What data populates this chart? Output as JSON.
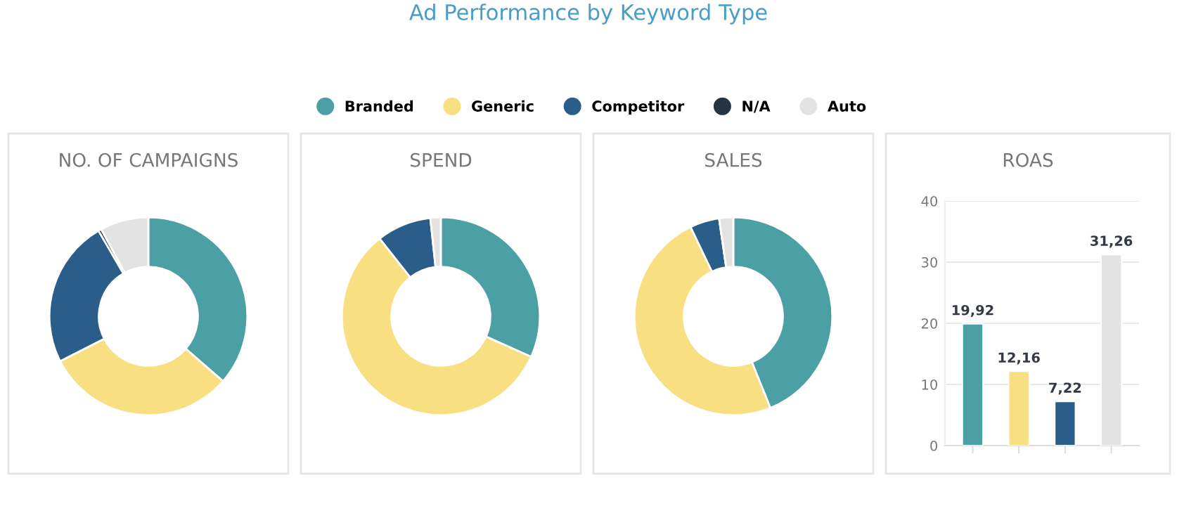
{
  "chart_data": [
    {
      "type": "donut",
      "title": "NO. OF CAMPAIGNS",
      "annotations": [
        "Ad Performance by Keyword Type"
      ],
      "legend": "top",
      "categories": [
        "Branded",
        "Generic",
        "Competitor",
        "N/A",
        "Auto"
      ],
      "values": [
        36.4,
        31.1,
        24.1,
        0.5,
        7.9
      ],
      "colors": [
        "#4ba0a6",
        "#f7df82",
        "#2b5d8a",
        "#263545",
        "#e3e3e3"
      ]
    },
    {
      "type": "donut",
      "title": "SPEND",
      "categories": [
        null,
        null,
        null,
        null,
        null
      ],
      "values": [
        31.7,
        57.6,
        8.9,
        null,
        1.7
      ],
      "colors": [
        "#4ba0a6",
        "#f7df82",
        "#2b5d8a",
        "#263545",
        "#e3e3e3"
      ]
    },
    {
      "type": "donut",
      "title": "SALES",
      "categories": [
        null,
        null,
        null,
        null,
        null
      ],
      "values": [
        43.9,
        49.0,
        4.8,
        0.0,
        2.3
      ],
      "colors": [
        "#4ba0a6",
        "#f7df82",
        "#2b5d8a",
        "#263545",
        "#e3e3e3"
      ]
    },
    {
      "type": "bar",
      "title": "ROAS",
      "categories": [
        null,
        null,
        null,
        null
      ],
      "values": [
        19.92,
        12.16,
        7.22,
        31.26
      ],
      "value_labels": [
        "19,92",
        "12,16",
        "7,22",
        "31,26"
      ],
      "colors": [
        "#4ba0a6",
        "#f7df82",
        "#2b5d8a",
        "#e3e3e3"
      ],
      "ylim": [
        0,
        40
      ],
      "yticks": [
        0,
        10,
        20,
        30,
        40
      ],
      "grid": "y"
    }
  ]
}
